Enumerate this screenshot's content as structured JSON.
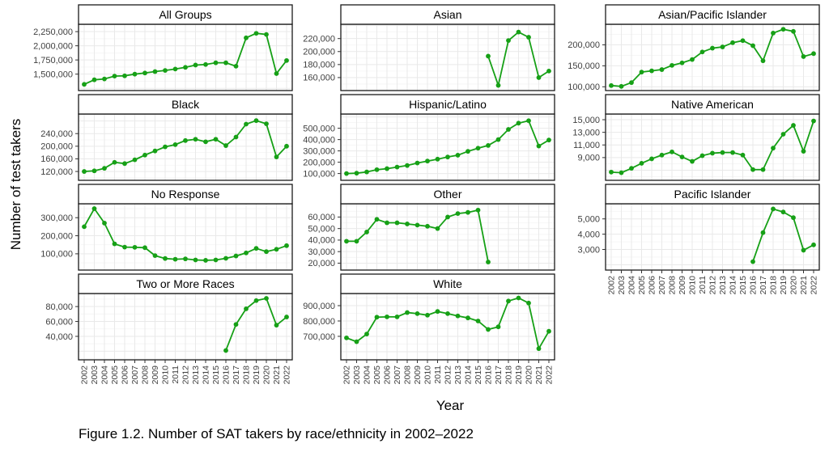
{
  "figure": {
    "y_axis_title": "Number of test takers",
    "x_axis_title": "Year",
    "caption": "Figure 1.2. Number of SAT takers by race/ethnicity in 2002–2022"
  },
  "chart_data": {
    "type": "line",
    "layout_hint": "facet grid 3 columns x 4 rows, free y scales, shared x 2002-2022, grid on, no legend, green line with point markers",
    "line_color": "#16a016",
    "grid_major_color": "#e9e9e9",
    "grid_minor_color": "#f4f4f4",
    "panel_border_color": "#1a1a1a",
    "axis_text_color": "#404040",
    "x_tick_labels": [
      "2002",
      "2003",
      "2004",
      "2005",
      "2006",
      "2007",
      "2008",
      "2009",
      "2010",
      "2011",
      "2012",
      "2013",
      "2014",
      "2015",
      "2016",
      "2017",
      "2018",
      "2019",
      "2020",
      "2021",
      "2022"
    ],
    "panels": [
      {
        "id": "all-groups",
        "title": "All Groups",
        "col": 0,
        "row": 0,
        "show_x_axis": false,
        "y_ticks": [
          1500000,
          1750000,
          2000000,
          2250000
        ],
        "y_tick_labels": [
          "1,500,000",
          "1,750,000",
          "2,000,000",
          "2,250,000"
        ],
        "y_domain": [
          1210000,
          2380000
        ],
        "values": [
          1320000,
          1400000,
          1415000,
          1465000,
          1470000,
          1500000,
          1520000,
          1545000,
          1565000,
          1590000,
          1620000,
          1660000,
          1670000,
          1700000,
          1700000,
          1640000,
          2140000,
          2220000,
          2200000,
          1510000,
          1740000
        ]
      },
      {
        "id": "asian",
        "title": "Asian",
        "col": 1,
        "row": 0,
        "show_x_axis": false,
        "y_ticks": [
          160000,
          180000,
          200000,
          220000
        ],
        "y_tick_labels": [
          "160,000",
          "180,000",
          "200,000",
          "220,000"
        ],
        "y_domain": [
          140000,
          242000
        ],
        "values": [
          null,
          null,
          null,
          null,
          null,
          null,
          null,
          null,
          null,
          null,
          null,
          null,
          null,
          null,
          193000,
          148000,
          217000,
          230000,
          222000,
          160000,
          170000
        ]
      },
      {
        "id": "asian-pacific-islander",
        "title": "Asian/Pacific Islander",
        "col": 2,
        "row": 0,
        "show_x_axis": false,
        "y_ticks": [
          100000,
          150000,
          200000
        ],
        "y_tick_labels": [
          "100,000",
          "150,000",
          "200,000"
        ],
        "y_domain": [
          91000,
          249000
        ],
        "values": [
          103000,
          101000,
          110000,
          135000,
          138000,
          141000,
          151000,
          157000,
          165000,
          183000,
          192000,
          195000,
          205000,
          210000,
          198000,
          162000,
          228000,
          237000,
          232000,
          172000,
          179000
        ]
      },
      {
        "id": "black",
        "title": "Black",
        "col": 0,
        "row": 1,
        "show_x_axis": false,
        "y_ticks": [
          120000,
          160000,
          200000,
          240000
        ],
        "y_tick_labels": [
          "120,000",
          "160,000",
          "200,000",
          "240,000"
        ],
        "y_domain": [
          92000,
          302000
        ],
        "values": [
          120000,
          122000,
          130000,
          149000,
          145000,
          157000,
          172000,
          185000,
          198000,
          205000,
          218000,
          222000,
          214000,
          222000,
          202000,
          229000,
          270000,
          281000,
          271000,
          166000,
          200000
        ]
      },
      {
        "id": "hispanic-latino",
        "title": "Hispanic/Latino",
        "col": 1,
        "row": 1,
        "show_x_axis": false,
        "y_ticks": [
          100000,
          200000,
          300000,
          400000,
          500000
        ],
        "y_tick_labels": [
          "100,000",
          "200,000",
          "300,000",
          "400,000",
          "500,000"
        ],
        "y_domain": [
          40000,
          626000
        ],
        "values": [
          100000,
          103000,
          114000,
          134000,
          143000,
          157000,
          171000,
          193000,
          210000,
          227000,
          246000,
          262000,
          296000,
          324000,
          348000,
          400000,
          490000,
          545000,
          567000,
          343000,
          396000
        ]
      },
      {
        "id": "native-american",
        "title": "Native American",
        "col": 2,
        "row": 1,
        "show_x_axis": false,
        "y_ticks": [
          9000,
          11000,
          13000,
          15000
        ],
        "y_tick_labels": [
          "9,000",
          "11,000",
          "13,000",
          "15,000"
        ],
        "y_domain": [
          5400,
          15900
        ],
        "values": [
          6700,
          6600,
          7300,
          8100,
          8800,
          9400,
          9900,
          9100,
          8400,
          9300,
          9700,
          9800,
          9800,
          9400,
          7100,
          7100,
          10500,
          12700,
          14100,
          10000,
          14800
        ]
      },
      {
        "id": "no-response",
        "title": "No Response",
        "col": 0,
        "row": 2,
        "show_x_axis": false,
        "y_ticks": [
          100000,
          200000,
          300000
        ],
        "y_tick_labels": [
          "100,000",
          "200,000",
          "300,000"
        ],
        "y_domain": [
          10000,
          377000
        ],
        "values": [
          250000,
          350000,
          270000,
          155000,
          137000,
          136000,
          134000,
          90000,
          74000,
          70000,
          72000,
          66000,
          64000,
          66000,
          75000,
          88000,
          105000,
          130000,
          112000,
          125000,
          145000
        ]
      },
      {
        "id": "other",
        "title": "Other",
        "col": 1,
        "row": 2,
        "show_x_axis": false,
        "y_ticks": [
          20000,
          30000,
          40000,
          50000,
          60000
        ],
        "y_tick_labels": [
          "20,000",
          "30,000",
          "40,000",
          "50,000",
          "60,000"
        ],
        "y_domain": [
          14000,
          71500
        ],
        "values": [
          39000,
          39000,
          47000,
          58000,
          55000,
          55000,
          54000,
          53000,
          52000,
          50000,
          60000,
          63000,
          64000,
          66000,
          21000,
          null,
          null,
          null,
          null,
          null,
          null
        ]
      },
      {
        "id": "pacific-islander",
        "title": "Pacific Islander",
        "col": 2,
        "row": 2,
        "show_x_axis": true,
        "y_ticks": [
          3000,
          4000,
          5000
        ],
        "y_tick_labels": [
          "3,000",
          "4,000",
          "5,000"
        ],
        "y_domain": [
          1650,
          5990
        ],
        "values": [
          null,
          null,
          null,
          null,
          null,
          null,
          null,
          null,
          null,
          null,
          null,
          null,
          null,
          null,
          2200,
          4100,
          5650,
          5450,
          5080,
          2950,
          3300
        ]
      },
      {
        "id": "two-or-more-races",
        "title": "Two or More Races",
        "col": 0,
        "row": 3,
        "show_x_axis": true,
        "y_ticks": [
          40000,
          60000,
          80000
        ],
        "y_tick_labels": [
          "40,000",
          "60,000",
          "80,000"
        ],
        "y_domain": [
          8500,
          97500
        ],
        "values": [
          null,
          null,
          null,
          null,
          null,
          null,
          null,
          null,
          null,
          null,
          null,
          null,
          null,
          null,
          21000,
          56000,
          77000,
          88000,
          91000,
          55000,
          66000
        ]
      },
      {
        "id": "white",
        "title": "White",
        "col": 1,
        "row": 3,
        "show_x_axis": true,
        "y_ticks": [
          700000,
          800000,
          900000
        ],
        "y_tick_labels": [
          "700,000",
          "800,000",
          "900,000"
        ],
        "y_domain": [
          547000,
          979000
        ],
        "values": [
          690000,
          665000,
          715000,
          825000,
          827000,
          827000,
          855000,
          848000,
          838000,
          862000,
          848000,
          833000,
          820000,
          800000,
          745000,
          762000,
          930000,
          950000,
          917000,
          620000,
          733000
        ]
      }
    ]
  }
}
